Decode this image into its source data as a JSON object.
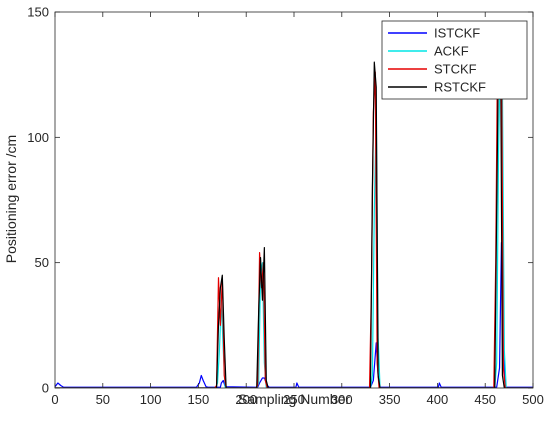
{
  "chart_data": {
    "type": "line",
    "title": "",
    "xlabel": "Sampling Number",
    "ylabel": "Positioning error /cm",
    "xlim": [
      0,
      500
    ],
    "ylim": [
      0,
      150
    ],
    "xticks": [
      "0",
      "50",
      "100",
      "150",
      "200",
      "250",
      "300",
      "350",
      "400",
      "450",
      "500"
    ],
    "yticks": [
      "0",
      "50",
      "100",
      "150"
    ],
    "grid": false,
    "legend_position": "top-right",
    "series": [
      {
        "name": "ISTCKF",
        "color": "#0000ff",
        "points": [
          [
            0,
            0.5
          ],
          [
            3,
            2
          ],
          [
            6,
            1
          ],
          [
            9,
            0.3
          ],
          [
            148,
            0.3
          ],
          [
            151,
            2
          ],
          [
            153,
            5
          ],
          [
            155,
            3
          ],
          [
            158,
            0.5
          ],
          [
            160,
            0.3
          ],
          [
            173,
            0.3
          ],
          [
            174,
            2
          ],
          [
            176,
            3
          ],
          [
            178,
            0.5
          ],
          [
            212,
            0.3
          ],
          [
            214,
            2
          ],
          [
            217,
            4
          ],
          [
            219,
            4
          ],
          [
            222,
            1
          ],
          [
            224,
            0.3
          ],
          [
            252,
            0.3
          ],
          [
            253,
            2
          ],
          [
            255,
            0.3
          ],
          [
            330,
            0.3
          ],
          [
            333,
            3
          ],
          [
            336,
            18
          ],
          [
            338,
            5
          ],
          [
            340,
            0.3
          ],
          [
            401,
            0.3
          ],
          [
            402,
            2
          ],
          [
            404,
            0.3
          ],
          [
            462,
            0.3
          ],
          [
            465,
            8
          ],
          [
            467,
            58
          ],
          [
            469,
            15
          ],
          [
            471,
            0.3
          ],
          [
            500,
            0.3
          ]
        ]
      },
      {
        "name": "ACKF",
        "color": "#00e5e5",
        "points": [
          [
            0,
            0
          ],
          [
            168,
            0
          ],
          [
            170,
            2
          ],
          [
            172,
            15
          ],
          [
            174,
            35
          ],
          [
            176,
            15
          ],
          [
            178,
            0
          ],
          [
            211,
            0
          ],
          [
            213,
            2
          ],
          [
            215,
            45
          ],
          [
            217,
            50
          ],
          [
            219,
            10
          ],
          [
            221,
            0
          ],
          [
            330,
            0
          ],
          [
            332,
            5
          ],
          [
            334,
            70
          ],
          [
            336,
            110
          ],
          [
            338,
            20
          ],
          [
            340,
            0
          ],
          [
            460,
            0
          ],
          [
            462,
            10
          ],
          [
            464,
            95
          ],
          [
            466,
            137
          ],
          [
            468,
            120
          ],
          [
            470,
            15
          ],
          [
            472,
            0
          ],
          [
            500,
            0
          ]
        ]
      },
      {
        "name": "STCKF",
        "color": "#e50000",
        "points": [
          [
            0,
            0
          ],
          [
            167,
            0
          ],
          [
            169,
            1
          ],
          [
            171,
            44
          ],
          [
            173,
            25
          ],
          [
            175,
            44
          ],
          [
            177,
            5
          ],
          [
            179,
            0
          ],
          [
            210,
            0
          ],
          [
            212,
            1
          ],
          [
            214,
            54
          ],
          [
            216,
            40
          ],
          [
            218,
            50
          ],
          [
            220,
            3
          ],
          [
            222,
            0
          ],
          [
            329,
            0
          ],
          [
            331,
            40
          ],
          [
            333,
            110
          ],
          [
            335,
            126
          ],
          [
            337,
            10
          ],
          [
            339,
            0
          ],
          [
            459,
            0
          ],
          [
            461,
            50
          ],
          [
            463,
            139
          ],
          [
            465,
            130
          ],
          [
            467,
            141
          ],
          [
            469,
            8
          ],
          [
            471,
            0
          ],
          [
            500,
            0
          ]
        ]
      },
      {
        "name": "RSTCKF",
        "color": "#000000",
        "points": [
          [
            0,
            0
          ],
          [
            169,
            0
          ],
          [
            171,
            25
          ],
          [
            173,
            40
          ],
          [
            175,
            45
          ],
          [
            177,
            20
          ],
          [
            179,
            0
          ],
          [
            211,
            0
          ],
          [
            213,
            30
          ],
          [
            215,
            52
          ],
          [
            217,
            35
          ],
          [
            219,
            56
          ],
          [
            221,
            3
          ],
          [
            223,
            0
          ],
          [
            330,
            0
          ],
          [
            332,
            80
          ],
          [
            334,
            130
          ],
          [
            336,
            120
          ],
          [
            338,
            5
          ],
          [
            340,
            0
          ],
          [
            460,
            0
          ],
          [
            462,
            70
          ],
          [
            464,
            136
          ],
          [
            466,
            143
          ],
          [
            468,
            5
          ],
          [
            470,
            0
          ],
          [
            500,
            0
          ]
        ]
      }
    ]
  }
}
